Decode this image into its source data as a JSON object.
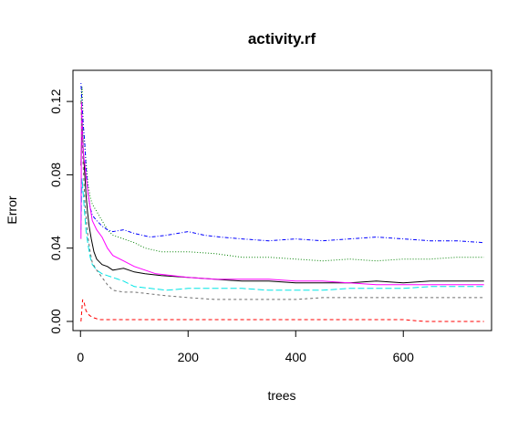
{
  "chart_data": {
    "type": "line",
    "title": "activity.rf",
    "xlabel": "trees",
    "ylabel": "Error",
    "xlim": [
      -14,
      764
    ],
    "ylim": [
      -0.005,
      0.137
    ],
    "xticks": [
      0,
      200,
      400,
      600
    ],
    "xtick_labels": [
      "0",
      "200",
      "400",
      "600"
    ],
    "yticks": [
      0.0,
      0.04,
      0.08,
      0.12
    ],
    "ytick_labels": [
      "0.00",
      "0.04",
      "0.08",
      "0.12"
    ],
    "grid": false,
    "legend": "none",
    "series": [
      {
        "color": "#000000",
        "dash": "solid",
        "points": [
          [
            1,
            0.085
          ],
          [
            3,
            0.11
          ],
          [
            5,
            0.094
          ],
          [
            8,
            0.08
          ],
          [
            10,
            0.07
          ],
          [
            13,
            0.06
          ],
          [
            16,
            0.052
          ],
          [
            20,
            0.045
          ],
          [
            25,
            0.038
          ],
          [
            30,
            0.034
          ],
          [
            40,
            0.031
          ],
          [
            50,
            0.03
          ],
          [
            60,
            0.028
          ],
          [
            80,
            0.029
          ],
          [
            100,
            0.027
          ],
          [
            120,
            0.026
          ],
          [
            150,
            0.025
          ],
          [
            200,
            0.024
          ],
          [
            250,
            0.023
          ],
          [
            300,
            0.022
          ],
          [
            350,
            0.022
          ],
          [
            400,
            0.021
          ],
          [
            450,
            0.021
          ],
          [
            500,
            0.021
          ],
          [
            550,
            0.022
          ],
          [
            600,
            0.021
          ],
          [
            650,
            0.022
          ],
          [
            700,
            0.022
          ],
          [
            750,
            0.022
          ]
        ]
      },
      {
        "color": "#ff0000",
        "dash": "dashed",
        "points": [
          [
            1,
            0.0
          ],
          [
            4,
            0.012
          ],
          [
            7,
            0.01
          ],
          [
            10,
            0.006
          ],
          [
            14,
            0.004
          ],
          [
            18,
            0.003
          ],
          [
            25,
            0.002
          ],
          [
            35,
            0.001
          ],
          [
            60,
            0.001
          ],
          [
            100,
            0.001
          ],
          [
            200,
            0.001
          ],
          [
            300,
            0.001
          ],
          [
            400,
            0.001
          ],
          [
            500,
            0.001
          ],
          [
            600,
            0.001
          ],
          [
            640,
            0.0
          ],
          [
            700,
            0.0
          ],
          [
            750,
            0.0
          ]
        ]
      },
      {
        "color": "#008000",
        "dash": "dotted",
        "points": [
          [
            1,
            0.12
          ],
          [
            3,
            0.128
          ],
          [
            5,
            0.108
          ],
          [
            8,
            0.095
          ],
          [
            10,
            0.088
          ],
          [
            14,
            0.075
          ],
          [
            18,
            0.068
          ],
          [
            22,
            0.064
          ],
          [
            30,
            0.06
          ],
          [
            40,
            0.055
          ],
          [
            50,
            0.05
          ],
          [
            60,
            0.047
          ],
          [
            80,
            0.045
          ],
          [
            100,
            0.043
          ],
          [
            120,
            0.04
          ],
          [
            150,
            0.038
          ],
          [
            200,
            0.038
          ],
          [
            250,
            0.037
          ],
          [
            300,
            0.035
          ],
          [
            350,
            0.035
          ],
          [
            400,
            0.034
          ],
          [
            450,
            0.033
          ],
          [
            500,
            0.034
          ],
          [
            550,
            0.033
          ],
          [
            600,
            0.034
          ],
          [
            650,
            0.034
          ],
          [
            700,
            0.035
          ],
          [
            750,
            0.035
          ]
        ]
      },
      {
        "color": "#0000ff",
        "dash": "dotdash",
        "points": [
          [
            1,
            0.13
          ],
          [
            3,
            0.118
          ],
          [
            5,
            0.108
          ],
          [
            8,
            0.097
          ],
          [
            10,
            0.085
          ],
          [
            14,
            0.07
          ],
          [
            18,
            0.062
          ],
          [
            22,
            0.058
          ],
          [
            30,
            0.055
          ],
          [
            40,
            0.052
          ],
          [
            50,
            0.05
          ],
          [
            60,
            0.049
          ],
          [
            80,
            0.05
          ],
          [
            100,
            0.048
          ],
          [
            130,
            0.046
          ],
          [
            160,
            0.047
          ],
          [
            200,
            0.049
          ],
          [
            230,
            0.047
          ],
          [
            260,
            0.046
          ],
          [
            300,
            0.045
          ],
          [
            350,
            0.044
          ],
          [
            400,
            0.045
          ],
          [
            450,
            0.044
          ],
          [
            500,
            0.045
          ],
          [
            550,
            0.046
          ],
          [
            600,
            0.045
          ],
          [
            650,
            0.044
          ],
          [
            700,
            0.044
          ],
          [
            750,
            0.043
          ]
        ]
      },
      {
        "color": "#00e5e5",
        "dash": "longdash",
        "points": [
          [
            1,
            0.05
          ],
          [
            3,
            0.078
          ],
          [
            5,
            0.07
          ],
          [
            8,
            0.058
          ],
          [
            10,
            0.05
          ],
          [
            14,
            0.042
          ],
          [
            18,
            0.035
          ],
          [
            22,
            0.031
          ],
          [
            30,
            0.028
          ],
          [
            40,
            0.026
          ],
          [
            50,
            0.025
          ],
          [
            60,
            0.024
          ],
          [
            80,
            0.022
          ],
          [
            100,
            0.019
          ],
          [
            130,
            0.018
          ],
          [
            160,
            0.017
          ],
          [
            200,
            0.018
          ],
          [
            250,
            0.018
          ],
          [
            300,
            0.018
          ],
          [
            350,
            0.017
          ],
          [
            400,
            0.017
          ],
          [
            450,
            0.017
          ],
          [
            500,
            0.018
          ],
          [
            550,
            0.018
          ],
          [
            600,
            0.018
          ],
          [
            650,
            0.019
          ],
          [
            700,
            0.019
          ],
          [
            750,
            0.019
          ]
        ]
      },
      {
        "color": "#ff00ff",
        "dash": "solid",
        "points": [
          [
            1,
            0.045
          ],
          [
            2,
            0.12
          ],
          [
            4,
            0.098
          ],
          [
            6,
            0.09
          ],
          [
            8,
            0.086
          ],
          [
            10,
            0.08
          ],
          [
            14,
            0.07
          ],
          [
            18,
            0.062
          ],
          [
            22,
            0.055
          ],
          [
            30,
            0.05
          ],
          [
            40,
            0.046
          ],
          [
            50,
            0.04
          ],
          [
            60,
            0.036
          ],
          [
            80,
            0.033
          ],
          [
            100,
            0.03
          ],
          [
            120,
            0.028
          ],
          [
            140,
            0.026
          ],
          [
            170,
            0.025
          ],
          [
            200,
            0.024
          ],
          [
            250,
            0.023
          ],
          [
            300,
            0.023
          ],
          [
            350,
            0.023
          ],
          [
            400,
            0.022
          ],
          [
            450,
            0.022
          ],
          [
            500,
            0.021
          ],
          [
            550,
            0.02
          ],
          [
            600,
            0.02
          ],
          [
            650,
            0.02
          ],
          [
            700,
            0.02
          ],
          [
            750,
            0.02
          ]
        ]
      },
      {
        "color": "#6d6d6d",
        "dash": "shortdash",
        "points": [
          [
            1,
            0.12
          ],
          [
            3,
            0.1
          ],
          [
            5,
            0.085
          ],
          [
            8,
            0.066
          ],
          [
            10,
            0.058
          ],
          [
            14,
            0.046
          ],
          [
            18,
            0.038
          ],
          [
            22,
            0.032
          ],
          [
            30,
            0.028
          ],
          [
            40,
            0.024
          ],
          [
            50,
            0.02
          ],
          [
            60,
            0.017
          ],
          [
            80,
            0.016
          ],
          [
            100,
            0.016
          ],
          [
            130,
            0.015
          ],
          [
            160,
            0.014
          ],
          [
            200,
            0.013
          ],
          [
            250,
            0.012
          ],
          [
            300,
            0.012
          ],
          [
            350,
            0.012
          ],
          [
            400,
            0.012
          ],
          [
            450,
            0.013
          ],
          [
            500,
            0.013
          ],
          [
            550,
            0.013
          ],
          [
            600,
            0.013
          ],
          [
            650,
            0.013
          ],
          [
            700,
            0.013
          ],
          [
            750,
            0.013
          ]
        ]
      }
    ]
  }
}
